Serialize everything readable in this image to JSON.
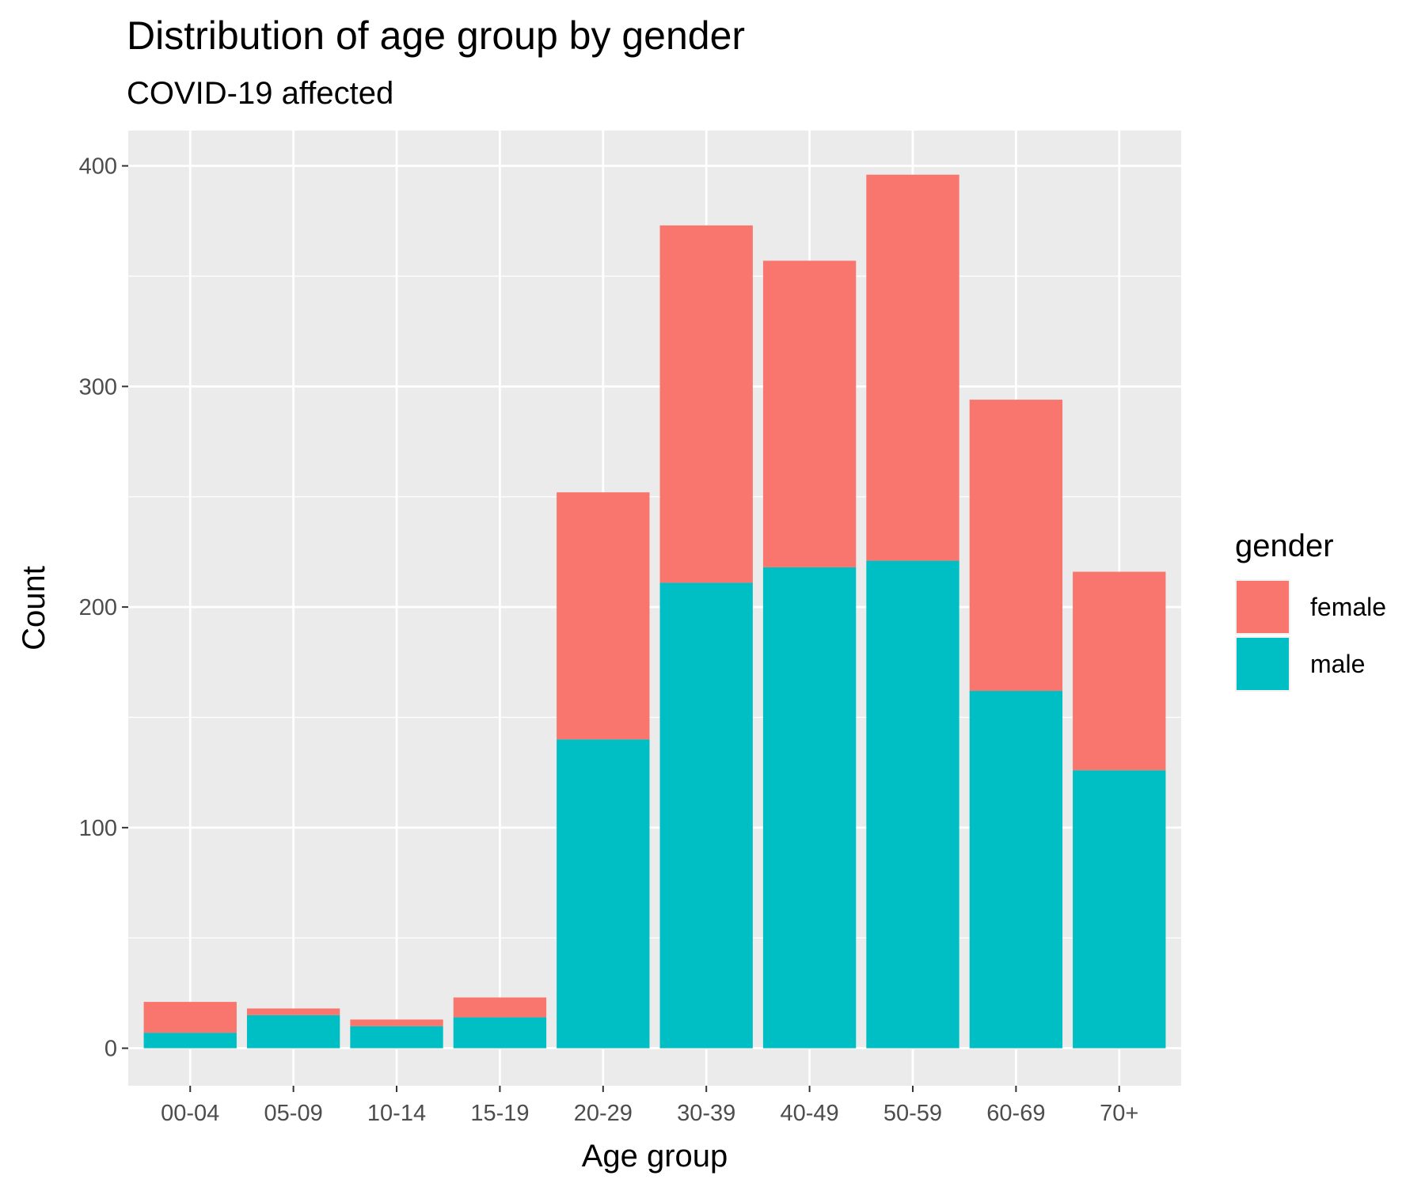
{
  "chart_data": {
    "type": "bar",
    "stacked": true,
    "title": "Distribution of age group by gender",
    "subtitle": "COVID-19 affected",
    "xlabel": "Age group",
    "ylabel": "Count",
    "categories": [
      "00-04",
      "05-09",
      "10-14",
      "15-19",
      "20-29",
      "30-39",
      "40-49",
      "50-59",
      "60-69",
      "70+"
    ],
    "series": [
      {
        "name": "male",
        "color": "#00BFC4",
        "values": [
          7,
          15,
          10,
          14,
          140,
          211,
          218,
          221,
          162,
          126
        ]
      },
      {
        "name": "female",
        "color": "#F8766D",
        "values": [
          14,
          3,
          3,
          9,
          112,
          162,
          139,
          175,
          132,
          90
        ]
      }
    ],
    "ylim": [
      -17,
      416
    ],
    "yticks": [
      0,
      100,
      200,
      300,
      400
    ],
    "grid": true,
    "legend": {
      "title": "gender",
      "placement": "right",
      "entries": [
        {
          "label": "female",
          "color": "#F8766D"
        },
        {
          "label": "male",
          "color": "#00BFC4"
        }
      ]
    }
  }
}
